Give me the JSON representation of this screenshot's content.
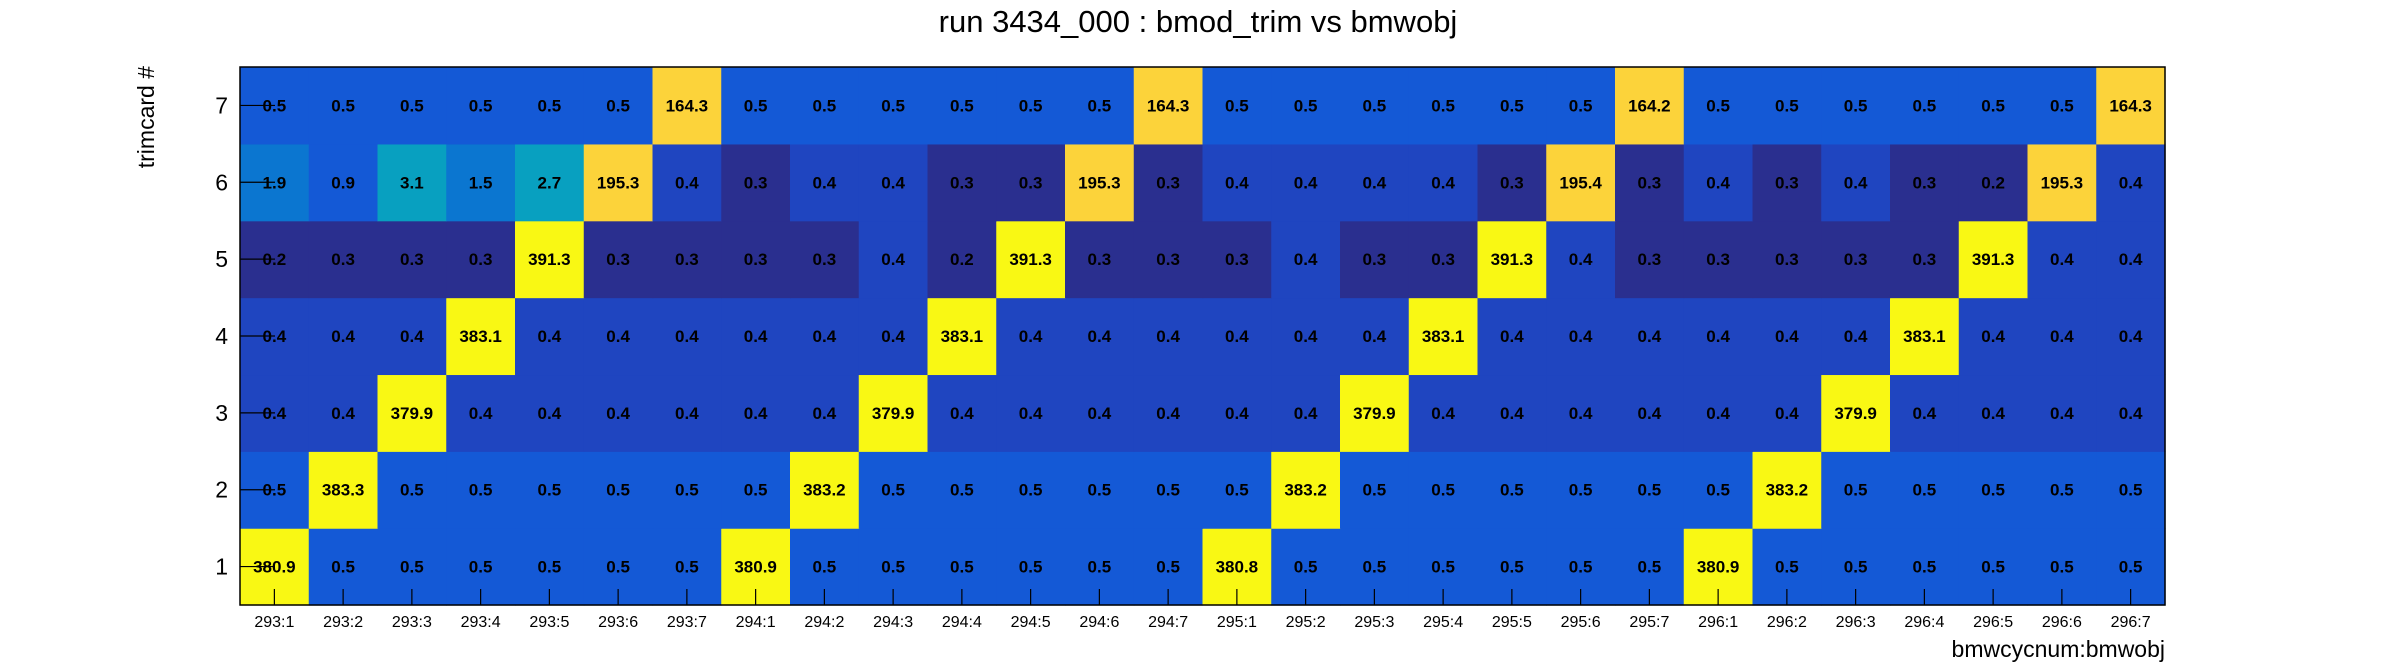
{
  "chart_data": {
    "type": "heatmap",
    "title": "run 3434_000 : bmod_trim vs bmwobj",
    "xlabel": "bmwcycnum:bmwobj",
    "ylabel": "trimcard #",
    "x_categories": [
      "293:1",
      "293:2",
      "293:3",
      "293:4",
      "293:5",
      "293:6",
      "293:7",
      "294:1",
      "294:2",
      "294:3",
      "294:4",
      "294:5",
      "294:6",
      "294:7",
      "295:1",
      "295:2",
      "295:3",
      "295:4",
      "295:5",
      "295:6",
      "295:7",
      "296:1",
      "296:2",
      "296:3",
      "296:4",
      "296:5",
      "296:6",
      "296:7"
    ],
    "y_categories": [
      "1",
      "2",
      "3",
      "4",
      "5",
      "6",
      "7"
    ],
    "values": [
      [
        380.9,
        0.5,
        0.5,
        0.5,
        0.5,
        0.5,
        0.5,
        380.9,
        0.5,
        0.5,
        0.5,
        0.5,
        0.5,
        0.5,
        380.8,
        0.5,
        0.5,
        0.5,
        0.5,
        0.5,
        0.5,
        380.9,
        0.5,
        0.5,
        0.5,
        0.5,
        0.5,
        0.5
      ],
      [
        0.5,
        383.3,
        0.5,
        0.5,
        0.5,
        0.5,
        0.5,
        0.5,
        383.2,
        0.5,
        0.5,
        0.5,
        0.5,
        0.5,
        0.5,
        383.2,
        0.5,
        0.5,
        0.5,
        0.5,
        0.5,
        0.5,
        383.2,
        0.5,
        0.5,
        0.5,
        0.5,
        0.5
      ],
      [
        0.4,
        0.4,
        379.9,
        0.4,
        0.4,
        0.4,
        0.4,
        0.4,
        0.4,
        379.9,
        0.4,
        0.4,
        0.4,
        0.4,
        0.4,
        0.4,
        379.9,
        0.4,
        0.4,
        0.4,
        0.4,
        0.4,
        0.4,
        379.9,
        0.4,
        0.4,
        0.4,
        0.4
      ],
      [
        0.4,
        0.4,
        0.4,
        383.1,
        0.4,
        0.4,
        0.4,
        0.4,
        0.4,
        0.4,
        383.1,
        0.4,
        0.4,
        0.4,
        0.4,
        0.4,
        0.4,
        383.1,
        0.4,
        0.4,
        0.4,
        0.4,
        0.4,
        0.4,
        383.1,
        0.4,
        0.4,
        0.4
      ],
      [
        0.2,
        0.3,
        0.3,
        0.3,
        391.3,
        0.3,
        0.3,
        0.3,
        0.3,
        0.4,
        0.2,
        391.3,
        0.3,
        0.3,
        0.3,
        0.4,
        0.3,
        0.3,
        391.3,
        0.4,
        0.3,
        0.3,
        0.3,
        0.3,
        0.3,
        391.3,
        0.4,
        0.4
      ],
      [
        1.9,
        0.9,
        3.1,
        1.5,
        2.7,
        195.3,
        0.4,
        0.3,
        0.4,
        0.4,
        0.3,
        0.3,
        195.3,
        0.3,
        0.4,
        0.4,
        0.4,
        0.4,
        0.3,
        195.4,
        0.3,
        0.4,
        0.3,
        0.4,
        0.3,
        0.2,
        195.3,
        0.4
      ],
      [
        0.5,
        0.5,
        0.5,
        0.5,
        0.5,
        0.5,
        164.3,
        0.5,
        0.5,
        0.5,
        0.5,
        0.5,
        0.5,
        164.3,
        0.5,
        0.5,
        0.5,
        0.5,
        0.5,
        0.5,
        164.2,
        0.5,
        0.5,
        0.5,
        0.5,
        0.5,
        0.5,
        164.3
      ]
    ],
    "colors": {
      "background": "#ffffff",
      "frame": "#000000",
      "palette": [
        "#2a2f8f",
        "#1f45c0",
        "#1459d6",
        "#0b76d0",
        "#08a0c0",
        "#fcd33a",
        "#f9f814"
      ]
    },
    "grid": false,
    "legend": "none"
  }
}
